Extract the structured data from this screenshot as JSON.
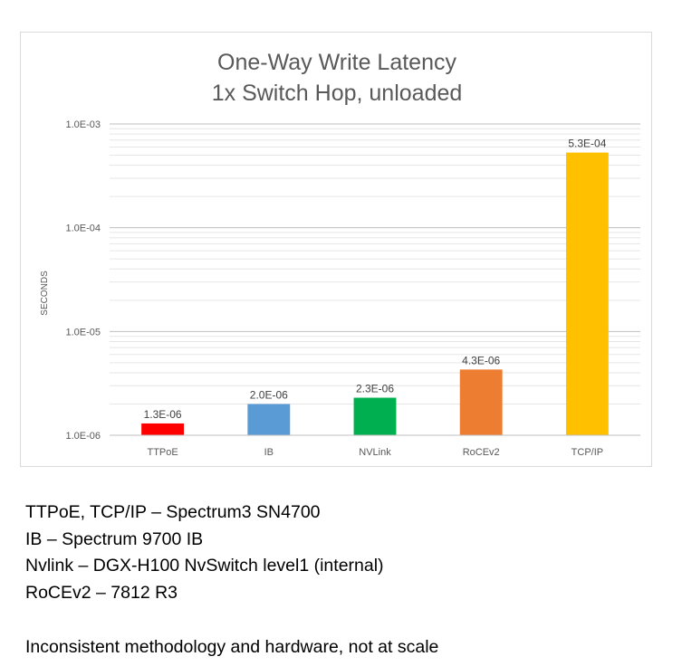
{
  "chart_data": {
    "type": "bar",
    "title": "One-Way Write Latency",
    "subtitle": "1x Switch Hop, unloaded",
    "xlabel": "",
    "ylabel": "SECONDS",
    "yscale": "log",
    "ylim": [
      1e-06,
      0.001
    ],
    "yticks": [
      {
        "value": 1e-06,
        "label": "1.0E-06"
      },
      {
        "value": 1e-05,
        "label": "1.0E-05"
      },
      {
        "value": 0.0001,
        "label": "1.0E-04"
      },
      {
        "value": 0.001,
        "label": "1.0E-03"
      }
    ],
    "grid": true,
    "categories": [
      "TTPoE",
      "IB",
      "NVLink",
      "RoCEv2",
      "TCP/IP"
    ],
    "values": [
      1.3e-06,
      2e-06,
      2.3e-06,
      4.3e-06,
      0.00053
    ],
    "data_labels": [
      "1.3E-06",
      "2.0E-06",
      "2.3E-06",
      "4.3E-06",
      "5.3E-04"
    ],
    "colors": [
      "#ff0000",
      "#5b9bd5",
      "#00b050",
      "#ed7d31",
      "#ffc000"
    ]
  },
  "notes": [
    "TTPoE, TCP/IP – Spectrum3 SN4700",
    "IB – Spectrum 9700 IB",
    "Nvlink – DGX-H100 NvSwitch level1 (internal)",
    "RoCEv2 – 7812 R3"
  ],
  "disclaimer": "Inconsistent methodology and hardware, not at scale"
}
